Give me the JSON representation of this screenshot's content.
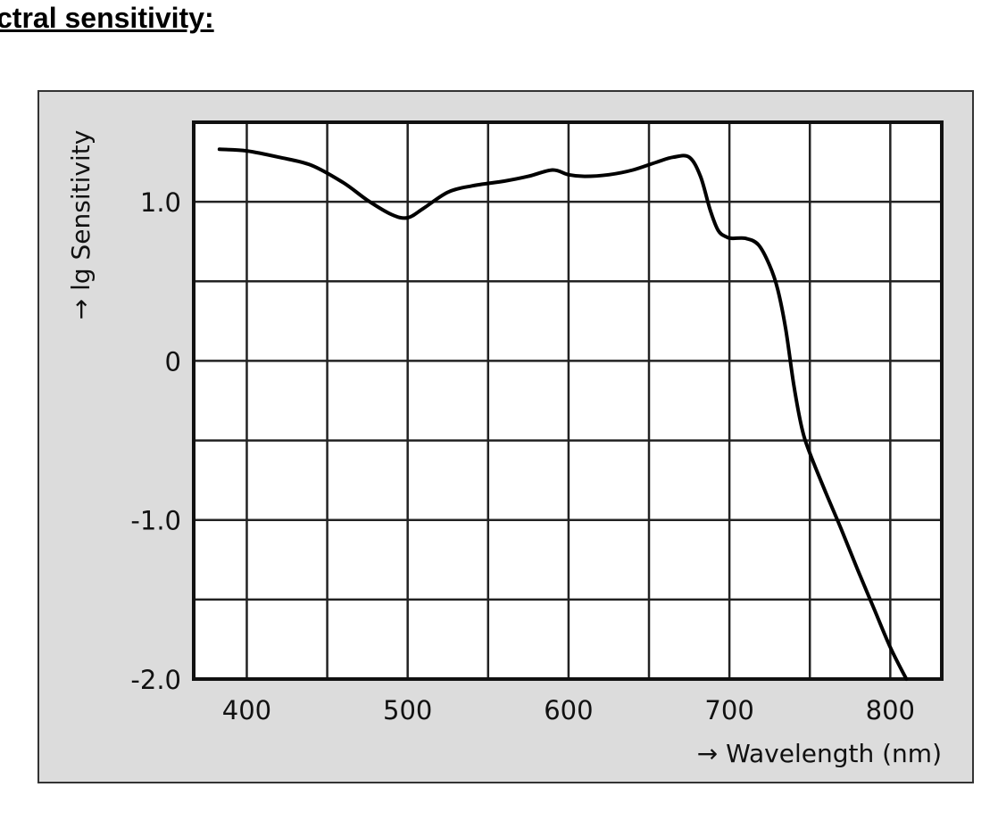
{
  "heading": "ctral sensitivity:",
  "chart_data": {
    "type": "line",
    "title": "",
    "xlabel": "→ Wavelength (nm)",
    "ylabel": "→ lg Sensitivity",
    "xlim": [
      367,
      832
    ],
    "ylim": [
      -2.0,
      1.5
    ],
    "x_ticks": [
      400,
      500,
      600,
      700,
      800
    ],
    "x_tick_labels": [
      "400",
      "500",
      "600",
      "700",
      "800"
    ],
    "y_ticks": [
      -2.0,
      -1.0,
      0,
      1.0
    ],
    "y_tick_labels": [
      "-2.0",
      "-1.0",
      "0",
      "1.0"
    ],
    "x_grid": [
      400,
      450,
      500,
      550,
      600,
      650,
      700,
      750,
      800
    ],
    "y_grid": [
      -1.5,
      -1.0,
      -0.5,
      0,
      0.5,
      1.0
    ],
    "grid": true,
    "legend": "none",
    "series": [
      {
        "x": [
          383,
          400,
          420,
          440,
          460,
          475,
          490,
          500,
          510,
          525,
          540,
          560,
          575,
          590,
          600,
          610,
          625,
          640,
          655,
          665,
          675,
          682,
          688,
          693,
          698,
          702,
          710,
          718,
          725,
          730,
          735,
          740,
          745,
          750,
          760,
          770,
          780,
          790,
          800,
          810
        ],
        "y": [
          1.33,
          1.32,
          1.28,
          1.23,
          1.12,
          1.01,
          0.92,
          0.9,
          0.96,
          1.06,
          1.1,
          1.13,
          1.16,
          1.2,
          1.17,
          1.16,
          1.17,
          1.2,
          1.25,
          1.28,
          1.28,
          1.16,
          0.95,
          0.82,
          0.78,
          0.77,
          0.77,
          0.73,
          0.6,
          0.45,
          0.2,
          -0.15,
          -0.42,
          -0.58,
          -0.83,
          -1.07,
          -1.32,
          -1.56,
          -1.8,
          -2.0
        ]
      }
    ]
  }
}
